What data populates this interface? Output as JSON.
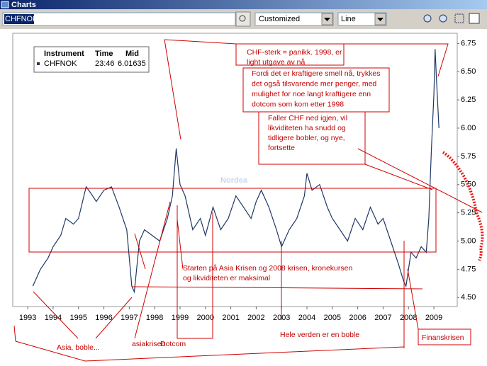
{
  "window": {
    "title": "Charts"
  },
  "toolbar": {
    "symbol": "CHFNOK",
    "view": "Customized",
    "style": "Line"
  },
  "chart_data": {
    "type": "line",
    "watermark": "Nordea",
    "info": {
      "headers": [
        "Instrument",
        "Time",
        "Mid"
      ],
      "time": "23:46",
      "mid": "6.01635"
    },
    "x": [
      1993.2,
      1993.5,
      1993.8,
      1994.0,
      1994.3,
      1994.5,
      1994.8,
      1995.0,
      1995.3,
      1995.5,
      1995.7,
      1996.0,
      1996.3,
      1996.6,
      1996.9,
      1997.0,
      1997.1,
      1997.2,
      1997.4,
      1997.6,
      1997.9,
      1998.2,
      1998.5,
      1998.7,
      1998.85,
      1998.95,
      1999.0,
      1999.2,
      1999.5,
      1999.8,
      2000.0,
      2000.3,
      2000.6,
      2000.9,
      2001.2,
      2001.5,
      2001.8,
      2002.0,
      2002.2,
      2002.5,
      2002.8,
      2003.0,
      2003.3,
      2003.6,
      2003.9,
      2004.0,
      2004.2,
      2004.5,
      2004.8,
      2005.0,
      2005.3,
      2005.6,
      2005.9,
      2006.2,
      2006.5,
      2006.8,
      2007.0,
      2007.3,
      2007.6,
      2007.8,
      2007.9,
      2008.1,
      2008.3,
      2008.5,
      2008.7,
      2008.8,
      2008.9,
      2009.0,
      2009.05,
      2009.1,
      2009.2
    ],
    "series": [
      {
        "name": "CHFNOK",
        "color": "#1f3864",
        "values": [
          4.6,
          4.75,
          4.85,
          4.95,
          5.05,
          5.2,
          5.15,
          5.2,
          5.48,
          5.42,
          5.35,
          5.45,
          5.48,
          5.3,
          5.1,
          4.85,
          4.6,
          4.55,
          5.0,
          5.1,
          5.05,
          5.0,
          5.2,
          5.4,
          5.82,
          5.6,
          5.5,
          5.4,
          5.1,
          5.2,
          5.05,
          5.3,
          5.1,
          5.2,
          5.4,
          5.3,
          5.2,
          5.35,
          5.45,
          5.3,
          5.1,
          4.95,
          5.1,
          5.2,
          5.4,
          5.6,
          5.45,
          5.5,
          5.3,
          5.2,
          5.1,
          5.0,
          5.2,
          5.1,
          5.3,
          5.15,
          5.2,
          5.0,
          4.8,
          4.65,
          4.6,
          4.9,
          4.85,
          4.95,
          4.9,
          5.2,
          5.8,
          6.3,
          6.7,
          6.45,
          6.0
        ]
      }
    ],
    "xlim": [
      1992.41,
      2009.92
    ],
    "ylim": [
      4.42,
      6.84
    ],
    "xticks": [
      1993,
      1994,
      1995,
      1996,
      1997,
      1998,
      1999,
      2000,
      2001,
      2002,
      2003,
      2004,
      2005,
      2006,
      2007,
      2008,
      2009
    ],
    "yticks": [
      {
        "value": 4.5,
        "label": "4.50"
      },
      4.75,
      {
        "value": 5.0,
        "label": "5.00"
      },
      5.25,
      {
        "value": 5.5,
        "label": "5.50"
      },
      5.75,
      {
        "value": 6.0,
        "label": "6.00"
      },
      6.25,
      {
        "value": 6.5,
        "label": "6.50"
      },
      6.75
    ],
    "annotations": [
      {
        "lines": [
          "CHF-sterk = panikk. 1998, er",
          "light utgave av nå"
        ]
      },
      {
        "lines": [
          "Fordi det er kraftigere smell nå, trykkes",
          "det også tilsvarende mer penger, med",
          "mulighet for noe langt kraftigere enn",
          "dotcom som kom etter 1998"
        ]
      },
      {
        "lines": [
          "Faller CHF ned igjen, vil",
          "likviditeten ha snudd og",
          "tidligere bobler, og nye,",
          "fortsette"
        ]
      },
      {
        "lines": [
          "Starten på Asia Krisen og 2008 krisen, kronekursen",
          "og likviditeten er maksimal"
        ]
      },
      {
        "lines": [
          "Hele verden er en boble"
        ]
      },
      {
        "lines": [
          "Finanskrisen"
        ]
      },
      {
        "lines": [
          "Asia, boble..."
        ]
      },
      {
        "lines": [
          "asiakrisen"
        ]
      },
      {
        "lines": [
          "Dotcom"
        ]
      }
    ]
  }
}
